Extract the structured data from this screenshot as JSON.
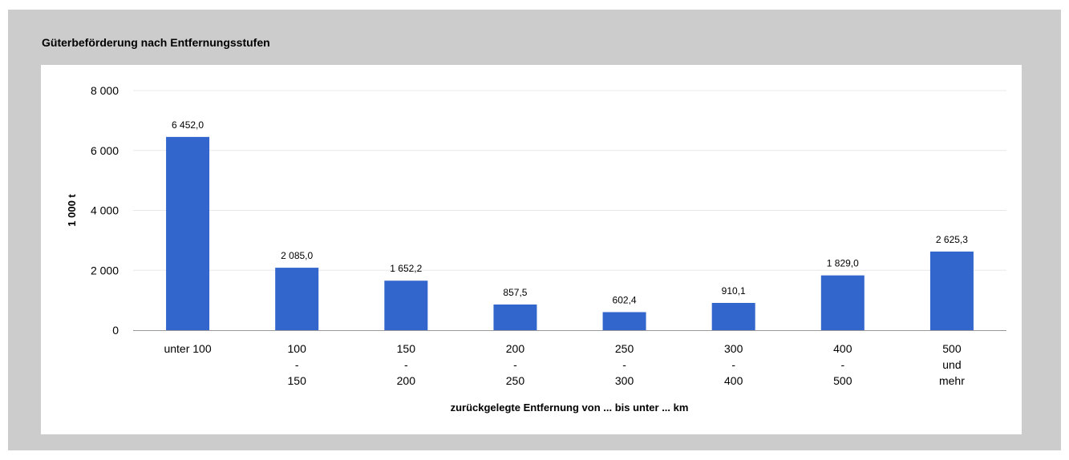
{
  "chart_data": {
    "type": "bar",
    "title": "Güterbeförderung nach Entfernungsstufen",
    "xlabel": "zurückgelegte Entfernung von ... bis unter ... km",
    "ylabel": "1 000 t",
    "ylim": [
      0,
      8000
    ],
    "yticks": [
      0,
      2000,
      4000,
      6000,
      8000
    ],
    "ytick_labels": [
      "0",
      "2 000",
      "4 000",
      "6 000",
      "8 000"
    ],
    "grid": true,
    "categories": [
      [
        "unter 100"
      ],
      [
        "100",
        "-",
        "150"
      ],
      [
        "150",
        "-",
        "200"
      ],
      [
        "200",
        "-",
        "250"
      ],
      [
        "250",
        "-",
        "300"
      ],
      [
        "300",
        "-",
        "400"
      ],
      [
        "400",
        "-",
        "500"
      ],
      [
        "500",
        "und",
        "mehr"
      ]
    ],
    "values": [
      6452.0,
      2085.0,
      1652.2,
      857.5,
      602.4,
      910.1,
      1829.0,
      2625.3
    ],
    "value_labels": [
      "6 452,0",
      "2 085,0",
      "1 652,2",
      "857,5",
      "602,4",
      "910,1",
      "1 829,0",
      "2 625,3"
    ],
    "bar_color": "#3366cc",
    "grid_color": "#e8e8e8",
    "axis_color": "#999999"
  }
}
